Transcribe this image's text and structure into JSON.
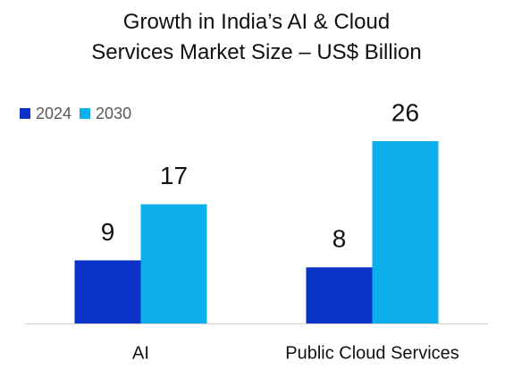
{
  "chart_data": {
    "type": "bar",
    "title": "Growth in India’s AI & Cloud\nServices Market Size – US$ Billion",
    "categories": [
      "AI",
      "Public Cloud Services"
    ],
    "series": [
      {
        "name": "2024",
        "color": "#0b33c8",
        "values": [
          9,
          8
        ]
      },
      {
        "name": "2030",
        "color": "#0cafec",
        "values": [
          17,
          26
        ]
      }
    ],
    "legend": "top-left"
  }
}
